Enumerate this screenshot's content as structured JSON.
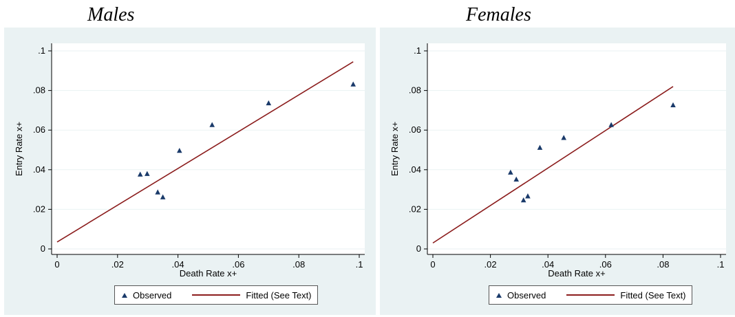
{
  "colors": {
    "background": "#eaf2f3",
    "marker": "#1a3a6a",
    "fit": "#8b1c1c",
    "grid": "#ffffff"
  },
  "legend": {
    "observed": "Observed",
    "fitted": "Fitted (See Text)"
  },
  "chart_data": [
    {
      "type": "scatter",
      "title": "Males",
      "xlabel": "Death Rate x+",
      "ylabel": "Entry Rate x+",
      "xlim": [
        0,
        0.1
      ],
      "ylim": [
        0,
        0.1
      ],
      "xticks": [
        0,
        0.02,
        0.04,
        0.06,
        0.08,
        0.1
      ],
      "xtick_labels": [
        "0",
        ".02",
        ".04",
        ".06",
        ".08",
        ".1"
      ],
      "yticks": [
        0,
        0.02,
        0.04,
        0.06,
        0.08,
        0.1
      ],
      "ytick_labels": [
        "0",
        ".02",
        ".04",
        ".06",
        ".08",
        ".1"
      ],
      "grid": true,
      "legend_position": "bottom",
      "series": [
        {
          "name": "Observed",
          "type": "scatter",
          "x": [
            0.0275,
            0.0298,
            0.0333,
            0.035,
            0.0405,
            0.0513,
            0.07,
            0.098
          ],
          "y": [
            0.0375,
            0.0378,
            0.0285,
            0.026,
            0.0495,
            0.0625,
            0.0735,
            0.083
          ]
        },
        {
          "name": "Fitted (See Text)",
          "type": "line",
          "x": [
            0.0,
            0.098
          ],
          "y": [
            0.0035,
            0.0945
          ]
        }
      ]
    },
    {
      "type": "scatter",
      "title": "Females",
      "xlabel": "Death Rate x+",
      "ylabel": "Entry Rate x+",
      "xlim": [
        0,
        0.1
      ],
      "ylim": [
        0,
        0.1
      ],
      "xticks": [
        0,
        0.02,
        0.04,
        0.06,
        0.08,
        0.1
      ],
      "xtick_labels": [
        "0",
        ".02",
        ".04",
        ".06",
        ".08",
        ".1"
      ],
      "yticks": [
        0,
        0.02,
        0.04,
        0.06,
        0.08,
        0.1
      ],
      "ytick_labels": [
        "0",
        ".02",
        ".04",
        ".06",
        ".08",
        ".1"
      ],
      "grid": true,
      "legend_position": "bottom",
      "series": [
        {
          "name": "Observed",
          "type": "scatter",
          "x": [
            0.027,
            0.029,
            0.0315,
            0.033,
            0.0372,
            0.0455,
            0.062,
            0.0835
          ],
          "y": [
            0.0385,
            0.035,
            0.0245,
            0.0265,
            0.051,
            0.056,
            0.0625,
            0.0725
          ]
        },
        {
          "name": "Fitted (See Text)",
          "type": "line",
          "x": [
            0.0,
            0.0835
          ],
          "y": [
            0.003,
            0.082
          ]
        }
      ]
    }
  ]
}
